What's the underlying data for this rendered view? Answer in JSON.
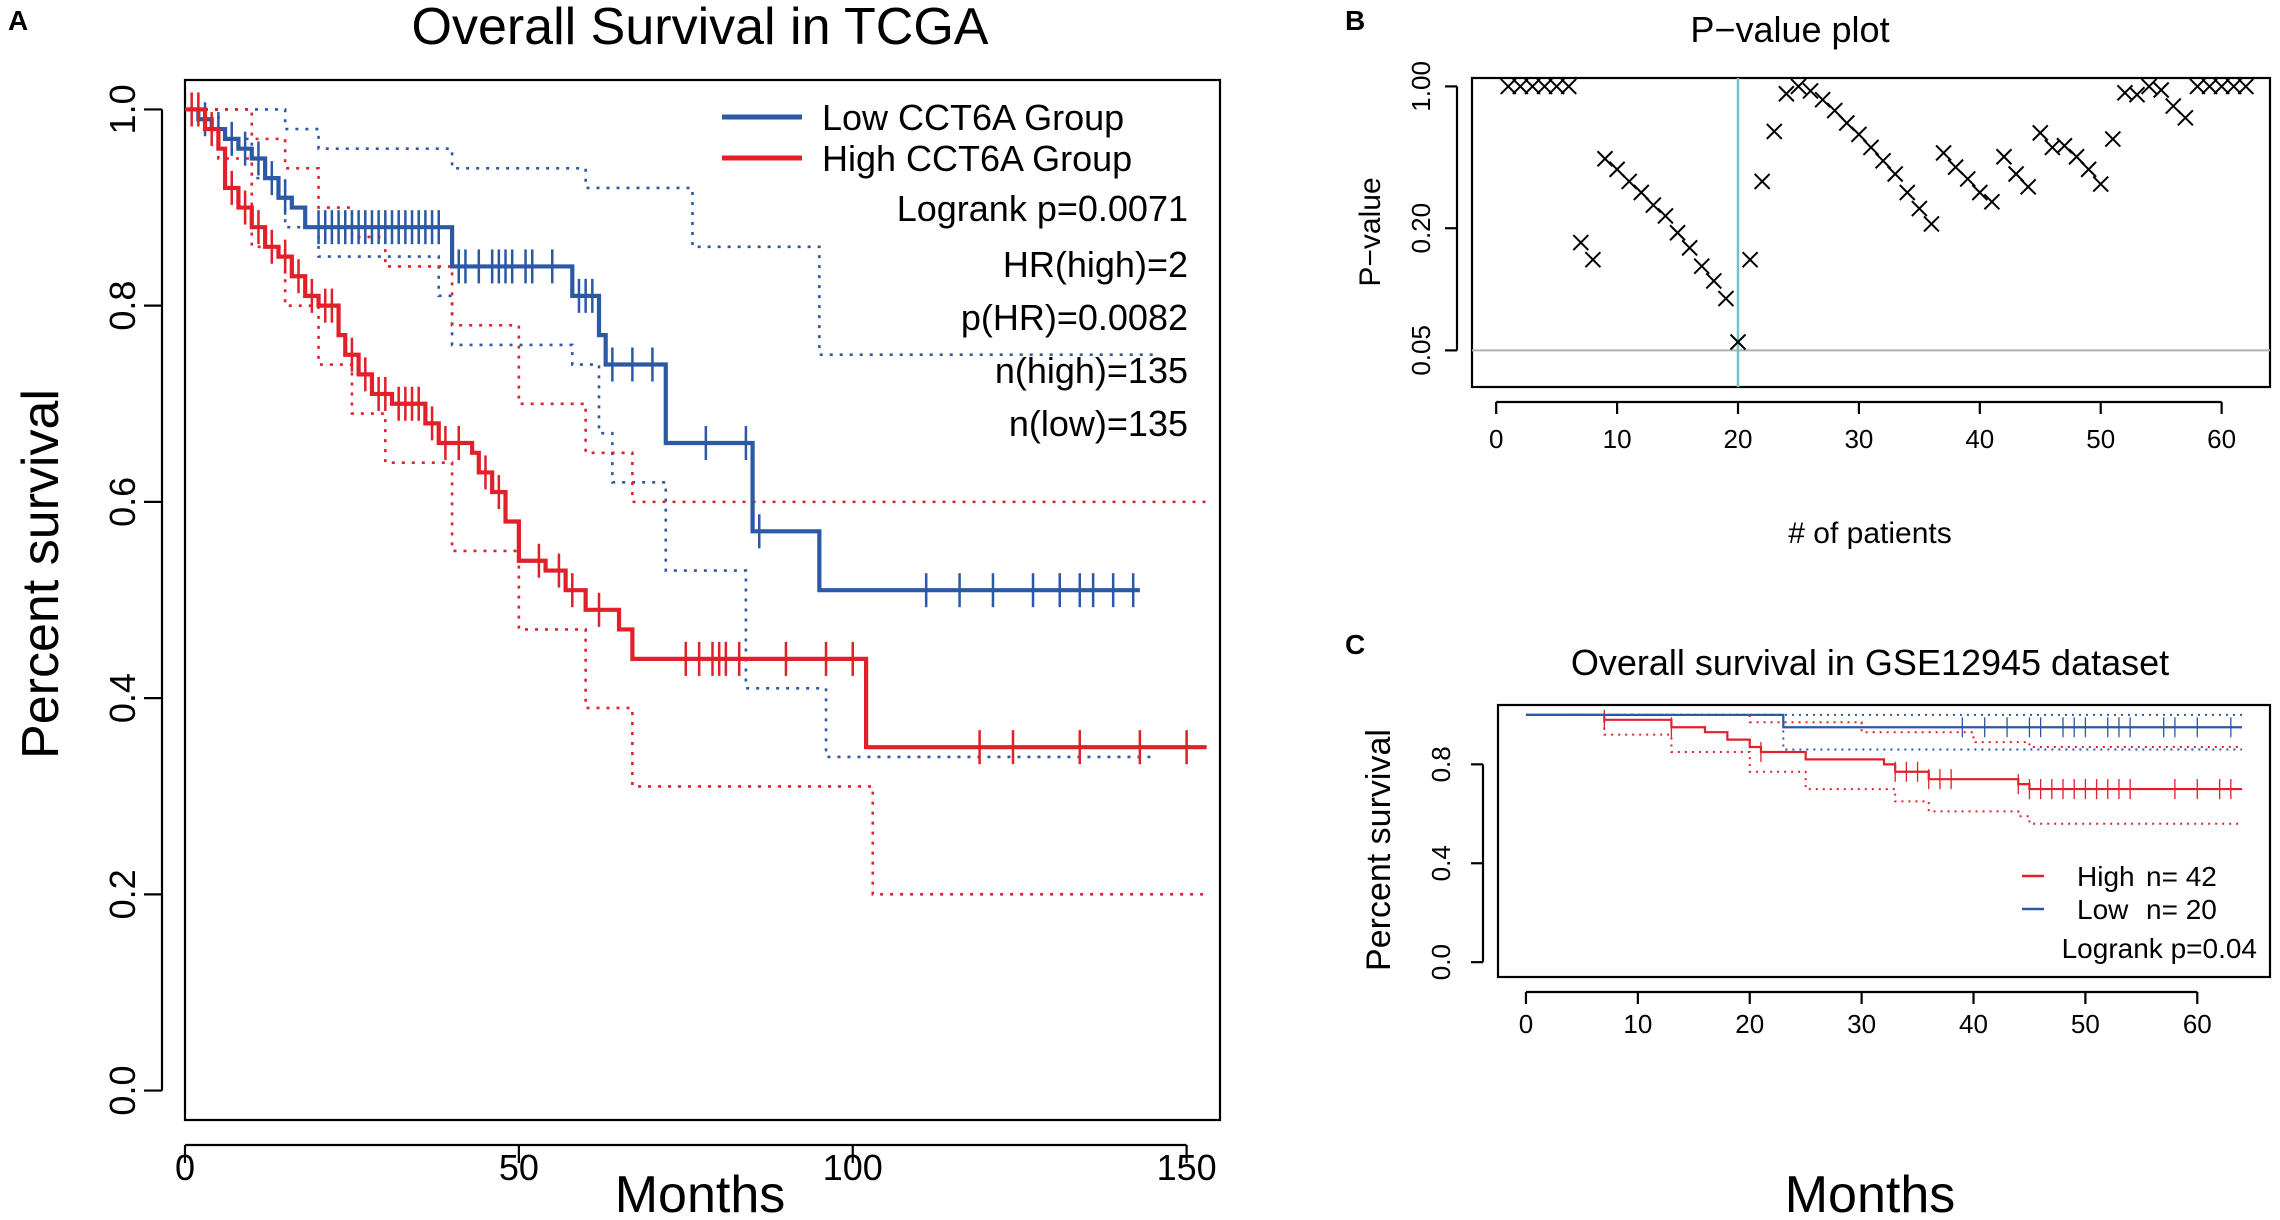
{
  "colors": {
    "low": "#2b59a6",
    "high": "#e1202a",
    "vline": "#6cc4c8",
    "hline": "#b0b0b0",
    "marker": "#000000"
  },
  "chart_data": [
    {
      "id": "A",
      "panel_label": "A",
      "type": "line",
      "title": "Overall Survival in TCGA",
      "xlabel": "Months",
      "ylabel": "Percent survival",
      "xlim": [
        0,
        155
      ],
      "ylim": [
        -0.03,
        1.03
      ],
      "xticks": [
        0,
        50,
        100,
        150
      ],
      "yticks": [
        0.0,
        0.2,
        0.4,
        0.6,
        0.8,
        1.0
      ],
      "xtick_labels": [
        "0",
        "50",
        "100",
        "150"
      ],
      "ytick_labels": [
        "0.0",
        "0.2",
        "0.4",
        "0.6",
        "0.8",
        "1.0"
      ],
      "legend": {
        "position": "top-right",
        "entries": [
          {
            "label": "Low CCT6A Group",
            "series": "low"
          },
          {
            "label": "High CCT6A Group",
            "series": "high"
          }
        ],
        "stats": [
          "Logrank p=0.0071",
          "HR(high)=2",
          "p(HR)=0.0082",
          "n(high)=135",
          "n(low)=135"
        ]
      },
      "series": [
        {
          "name": "Low CCT6A Group",
          "key": "low",
          "style": "step",
          "x": [
            0,
            2,
            4,
            6,
            8,
            10,
            12,
            14,
            16,
            18,
            38,
            40,
            56,
            58,
            62,
            63,
            65,
            72,
            83,
            85,
            95,
            143
          ],
          "y": [
            1.0,
            0.99,
            0.98,
            0.97,
            0.96,
            0.95,
            0.93,
            0.91,
            0.9,
            0.88,
            0.88,
            0.84,
            0.84,
            0.81,
            0.77,
            0.74,
            0.74,
            0.66,
            0.66,
            0.57,
            0.51,
            0.51
          ],
          "censor_x": [
            3,
            5,
            7,
            9,
            11,
            13,
            15,
            20,
            21,
            22,
            23,
            24,
            25,
            26,
            27,
            28,
            29,
            30,
            31,
            32,
            33,
            34,
            35,
            36,
            37,
            38,
            41,
            42,
            44,
            46,
            47,
            48,
            49,
            51,
            52,
            55,
            59,
            60,
            61,
            64,
            67,
            70,
            78,
            84,
            86,
            111,
            116,
            121,
            127,
            131,
            134,
            136,
            139,
            142
          ]
        },
        {
          "name": "High CCT6A Group",
          "key": "high",
          "style": "step",
          "x": [
            0,
            3,
            5,
            6,
            8,
            10,
            12,
            14,
            16,
            18,
            20,
            23,
            24,
            26,
            28,
            31,
            36,
            38,
            43,
            44,
            46,
            48,
            50,
            54,
            57,
            60,
            65,
            67,
            102,
            153
          ],
          "y": [
            1.0,
            0.98,
            0.96,
            0.92,
            0.9,
            0.88,
            0.86,
            0.85,
            0.83,
            0.81,
            0.8,
            0.77,
            0.75,
            0.73,
            0.71,
            0.7,
            0.68,
            0.66,
            0.65,
            0.63,
            0.61,
            0.58,
            0.54,
            0.53,
            0.51,
            0.49,
            0.47,
            0.44,
            0.35,
            0.35
          ],
          "censor_x": [
            1,
            2,
            4,
            7,
            9,
            11,
            13,
            15,
            17,
            19,
            21,
            22,
            25,
            27,
            29,
            30,
            32,
            33,
            34,
            35,
            37,
            39,
            41,
            45,
            47,
            53,
            56,
            58,
            62,
            75,
            77,
            79,
            80,
            81,
            83,
            90,
            96,
            100,
            119,
            124,
            134,
            143,
            150
          ]
        },
        {
          "name": "Low CI upper",
          "key": "low",
          "style": "dotted",
          "x": [
            0,
            5,
            10,
            15,
            20,
            40,
            60,
            76,
            95,
            145
          ],
          "y": [
            1.0,
            1.0,
            1.0,
            0.98,
            0.96,
            0.94,
            0.92,
            0.86,
            0.75,
            0.75
          ]
        },
        {
          "name": "Low CI lower",
          "key": "low",
          "style": "dotted",
          "x": [
            0,
            5,
            10,
            15,
            20,
            38,
            40,
            58,
            62,
            64,
            72,
            84,
            94,
            96,
            145
          ],
          "y": [
            1.0,
            0.97,
            0.93,
            0.88,
            0.85,
            0.81,
            0.76,
            0.74,
            0.67,
            0.62,
            0.53,
            0.41,
            0.41,
            0.34,
            0.34
          ]
        },
        {
          "name": "High CI upper",
          "key": "high",
          "style": "dotted",
          "x": [
            0,
            5,
            10,
            15,
            20,
            25,
            30,
            40,
            50,
            60,
            67,
            102,
            153
          ],
          "y": [
            1.0,
            1.0,
            0.97,
            0.94,
            0.9,
            0.87,
            0.84,
            0.78,
            0.7,
            0.65,
            0.6,
            0.6,
            0.6
          ]
        },
        {
          "name": "High CI lower",
          "key": "high",
          "style": "dotted",
          "x": [
            0,
            5,
            10,
            15,
            20,
            25,
            30,
            40,
            50,
            60,
            67,
            102,
            103,
            153
          ],
          "y": [
            1.0,
            0.95,
            0.86,
            0.8,
            0.74,
            0.69,
            0.64,
            0.55,
            0.47,
            0.39,
            0.31,
            0.31,
            0.2,
            0.2
          ]
        }
      ]
    },
    {
      "id": "B",
      "panel_label": "B",
      "type": "scatter",
      "title": "P−value plot",
      "xlabel": "# of patients",
      "ylabel": "P−value",
      "y_scale": "log",
      "xlim": [
        -2,
        64
      ],
      "ylim": [
        0.033,
        1.1
      ],
      "xticks": [
        0,
        10,
        20,
        30,
        40,
        50,
        60
      ],
      "yticks": [
        1.0,
        0.2,
        0.05
      ],
      "xtick_labels": [
        "0",
        "10",
        "20",
        "30",
        "40",
        "50",
        "60"
      ],
      "ytick_labels": [
        "1.00",
        "0.20",
        "0.05"
      ],
      "hline": 0.05,
      "vline": 20,
      "marker": "x",
      "x": [
        1,
        2,
        3,
        4,
        5,
        6,
        7,
        8,
        9,
        10,
        11,
        12,
        13,
        14,
        15,
        16,
        17,
        18,
        19,
        20,
        21,
        22,
        23,
        24,
        25,
        26,
        27,
        28,
        29,
        30,
        31,
        32,
        33,
        34,
        35,
        36,
        37,
        38,
        39,
        40,
        41,
        42,
        43,
        44,
        45,
        46,
        47,
        48,
        49,
        50,
        51,
        52,
        53,
        54,
        55,
        56,
        57,
        58,
        59,
        60,
        61,
        62
      ],
      "y": [
        1.0,
        1.0,
        1.0,
        1.0,
        1.0,
        1.0,
        0.17,
        0.14,
        0.44,
        0.39,
        0.34,
        0.3,
        0.26,
        0.23,
        0.19,
        0.16,
        0.13,
        0.11,
        0.09,
        0.055,
        0.14,
        0.34,
        0.6,
        0.92,
        1.0,
        0.95,
        0.86,
        0.76,
        0.66,
        0.58,
        0.5,
        0.43,
        0.37,
        0.3,
        0.25,
        0.21,
        0.47,
        0.4,
        0.35,
        0.3,
        0.27,
        0.45,
        0.37,
        0.32,
        0.59,
        0.5,
        0.51,
        0.45,
        0.39,
        0.33,
        0.55,
        0.93,
        0.91,
        1.0,
        0.96,
        0.8,
        0.7,
        1.0,
        1.0,
        1.0,
        1.0,
        1.0
      ]
    },
    {
      "id": "C",
      "panel_label": "C",
      "type": "line",
      "title": "Overall survival in GSE12945 dataset",
      "xlabel": "Months",
      "ylabel": "Percent survival",
      "xlim": [
        -2.5,
        66.5
      ],
      "ylim": [
        -0.06,
        1.04
      ],
      "xticks": [
        0,
        10,
        20,
        30,
        40,
        50,
        60
      ],
      "yticks": [
        0.0,
        0.4,
        0.8
      ],
      "xtick_labels": [
        "0",
        "10",
        "20",
        "30",
        "40",
        "50",
        "60"
      ],
      "ytick_labels": [
        "0.0",
        "0.4",
        "0.8"
      ],
      "legend": {
        "position": "bottom-right",
        "entries": [
          {
            "label": "High",
            "n": "n= 42",
            "series": "high"
          },
          {
            "label": "Low",
            "n": "n= 20",
            "series": "low"
          }
        ],
        "stats": [
          "Logrank p=0.04"
        ]
      },
      "series": [
        {
          "name": "High",
          "key": "high",
          "style": "step",
          "x": [
            0,
            7,
            13,
            16,
            18,
            20,
            21,
            25,
            32,
            33,
            36,
            44,
            45,
            64
          ],
          "y": [
            1.0,
            0.98,
            0.95,
            0.93,
            0.9,
            0.87,
            0.85,
            0.82,
            0.8,
            0.77,
            0.74,
            0.72,
            0.7,
            0.7
          ],
          "censor_x": [
            7,
            13,
            21,
            33,
            34,
            35,
            36,
            37,
            38,
            44,
            45,
            46,
            47,
            48,
            49,
            50,
            51,
            52,
            53,
            54,
            58,
            60,
            62,
            63
          ]
        },
        {
          "name": "Low",
          "key": "low",
          "style": "step",
          "x": [
            0,
            23,
            64
          ],
          "y": [
            1.0,
            0.95,
            0.95
          ],
          "censor_x": [
            39,
            41,
            43,
            45,
            46,
            48,
            49,
            50,
            52,
            53,
            54,
            57,
            58,
            60,
            63
          ]
        },
        {
          "name": "Low CI upper",
          "key": "low",
          "style": "dotted",
          "x": [
            0,
            64
          ],
          "y": [
            1.0,
            1.0
          ]
        },
        {
          "name": "Low CI lower",
          "key": "low",
          "style": "dotted",
          "x": [
            0,
            23,
            23,
            64
          ],
          "y": [
            1.0,
            1.0,
            0.86,
            0.86
          ]
        },
        {
          "name": "High CI upper",
          "key": "high",
          "style": "dotted",
          "x": [
            0,
            7,
            13,
            20,
            30,
            40,
            45,
            64
          ],
          "y": [
            1.0,
            1.0,
            1.0,
            0.97,
            0.93,
            0.89,
            0.87,
            0.87
          ]
        },
        {
          "name": "High CI lower",
          "key": "high",
          "style": "dotted",
          "x": [
            0,
            7,
            13,
            20,
            25,
            33,
            36,
            44,
            45,
            64
          ],
          "y": [
            1.0,
            0.92,
            0.85,
            0.77,
            0.7,
            0.65,
            0.61,
            0.59,
            0.56,
            0.56
          ]
        }
      ]
    }
  ]
}
